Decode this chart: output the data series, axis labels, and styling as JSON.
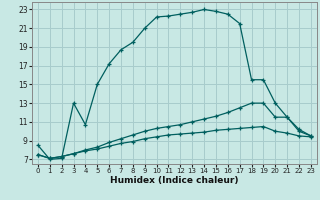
{
  "xlabel": "Humidex (Indice chaleur)",
  "bg_color": "#c8e8e4",
  "grid_color": "#a8cccc",
  "line_color": "#005f5f",
  "xlim": [
    -0.5,
    23.5
  ],
  "ylim": [
    6.5,
    23.8
  ],
  "xticks": [
    0,
    1,
    2,
    3,
    4,
    5,
    6,
    7,
    8,
    9,
    10,
    11,
    12,
    13,
    14,
    15,
    16,
    17,
    18,
    19,
    20,
    21,
    22,
    23
  ],
  "yticks": [
    7,
    9,
    11,
    13,
    15,
    17,
    19,
    21,
    23
  ],
  "curve1_x": [
    0,
    1,
    2,
    3,
    4,
    5,
    6,
    7,
    8,
    9,
    10,
    11,
    12,
    13,
    14,
    15,
    16,
    17,
    18,
    19,
    20,
    21,
    22,
    23
  ],
  "curve1_y": [
    8.5,
    7.0,
    7.1,
    13.0,
    10.7,
    15.0,
    17.2,
    18.7,
    19.5,
    21.0,
    22.2,
    22.3,
    22.5,
    22.7,
    23.0,
    22.8,
    22.5,
    21.5,
    15.5,
    15.5,
    13.0,
    11.5,
    10.0,
    9.5
  ],
  "curve2_x": [
    0,
    1,
    2,
    3,
    4,
    5,
    6,
    7,
    8,
    9,
    10,
    11,
    12,
    13,
    14,
    15,
    16,
    17,
    18,
    19,
    20,
    21,
    22,
    23
  ],
  "curve2_y": [
    7.5,
    7.1,
    7.3,
    7.6,
    8.0,
    8.3,
    8.8,
    9.2,
    9.6,
    10.0,
    10.3,
    10.5,
    10.7,
    11.0,
    11.3,
    11.6,
    12.0,
    12.5,
    13.0,
    13.0,
    11.5,
    11.5,
    10.2,
    9.5
  ],
  "curve3_x": [
    0,
    1,
    2,
    3,
    4,
    5,
    6,
    7,
    8,
    9,
    10,
    11,
    12,
    13,
    14,
    15,
    16,
    17,
    18,
    19,
    20,
    21,
    22,
    23
  ],
  "curve3_y": [
    7.5,
    7.1,
    7.3,
    7.6,
    7.9,
    8.1,
    8.4,
    8.7,
    8.9,
    9.2,
    9.4,
    9.6,
    9.7,
    9.8,
    9.9,
    10.1,
    10.2,
    10.3,
    10.4,
    10.5,
    10.0,
    9.8,
    9.5,
    9.4
  ]
}
